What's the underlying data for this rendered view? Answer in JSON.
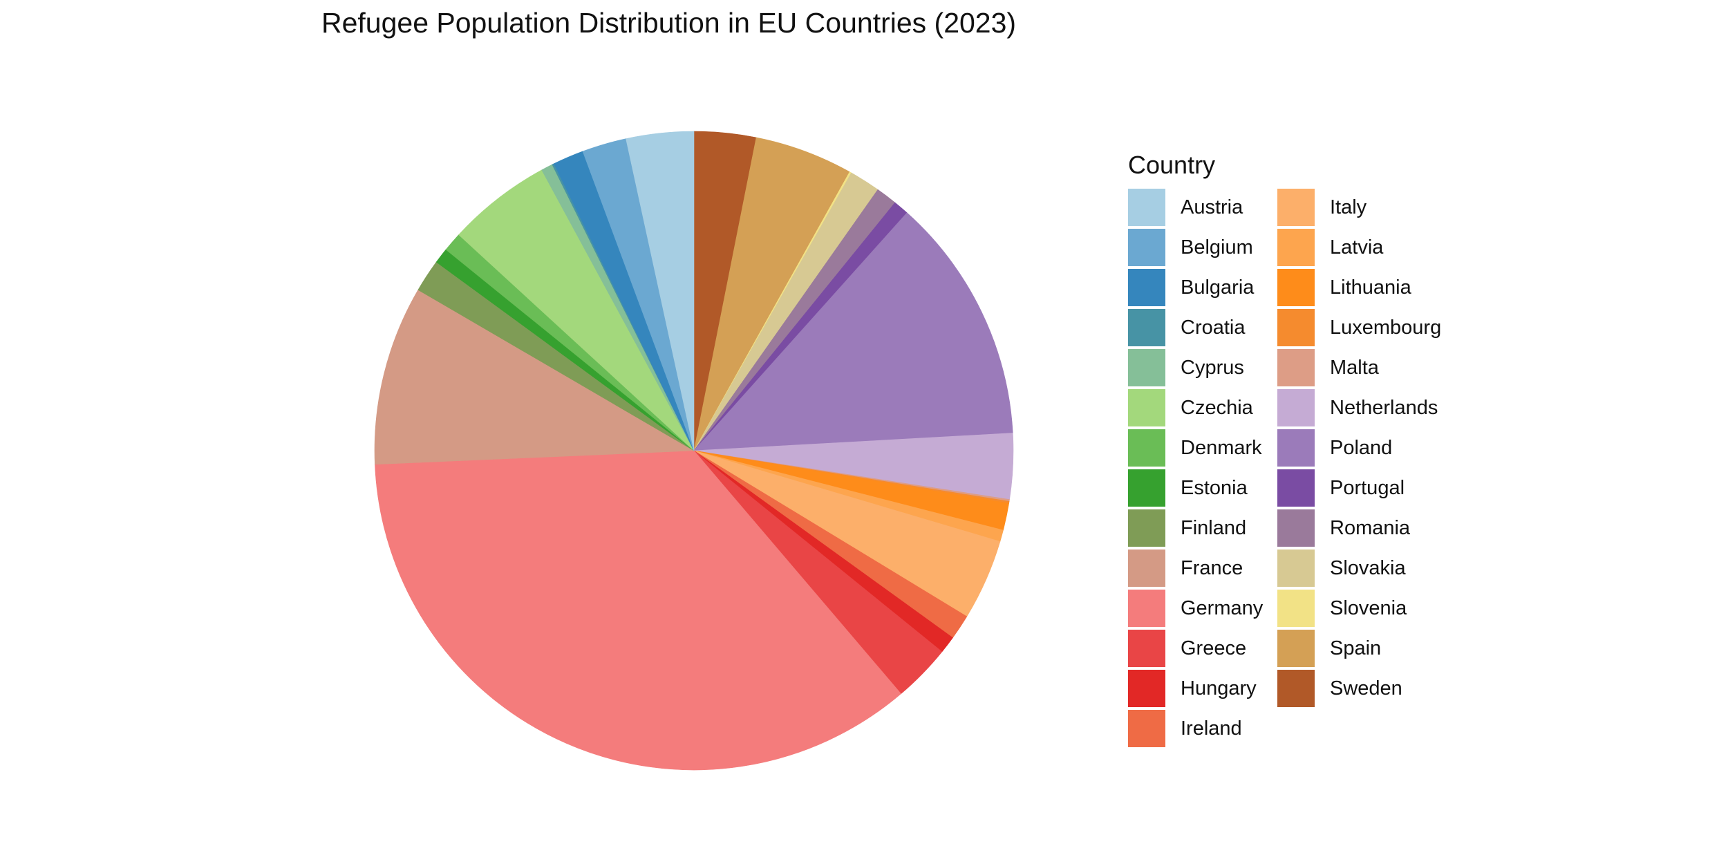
{
  "chart_data": {
    "type": "pie",
    "title": "Refugee Population Distribution in EU Countries (2023)",
    "legend_title": "Country",
    "legend_position": "right",
    "start": "top",
    "direction": "clockwise",
    "slice_order": [
      "Sweden",
      "Spain",
      "Slovenia",
      "Slovakia",
      "Romania",
      "Portugal",
      "Poland",
      "Netherlands",
      "Malta",
      "Luxembourg",
      "Lithuania",
      "Latvia",
      "Italy",
      "Ireland",
      "Hungary",
      "Greece",
      "Germany",
      "France",
      "Finland",
      "Estonia",
      "Denmark",
      "Czechia",
      "Cyprus",
      "Croatia",
      "Bulgaria",
      "Belgium",
      "Austria"
    ],
    "slices": [
      {
        "label": "Austria",
        "value": 3.5,
        "color": "#A6CEE3"
      },
      {
        "label": "Belgium",
        "value": 2.3,
        "color": "#6BA8D1"
      },
      {
        "label": "Bulgaria",
        "value": 1.6,
        "color": "#3586BD"
      },
      {
        "label": "Croatia",
        "value": 0.1,
        "color": "#4793A5"
      },
      {
        "label": "Cyprus",
        "value": 0.6,
        "color": "#85BF98"
      },
      {
        "label": "Czechia",
        "value": 5.4,
        "color": "#A3D87C"
      },
      {
        "label": "Denmark",
        "value": 1.0,
        "color": "#6ABD56"
      },
      {
        "label": "Estonia",
        "value": 0.8,
        "color": "#36A12F"
      },
      {
        "label": "Finland",
        "value": 1.7,
        "color": "#7F9C56"
      },
      {
        "label": "France",
        "value": 9.3,
        "color": "#D49A85"
      },
      {
        "label": "Germany",
        "value": 36.4,
        "color": "#F47C7C"
      },
      {
        "label": "Greece",
        "value": 3.0,
        "color": "#E94546"
      },
      {
        "label": "Hungary",
        "value": 0.9,
        "color": "#E22826"
      },
      {
        "label": "Ireland",
        "value": 1.3,
        "color": "#EF6B45"
      },
      {
        "label": "Italy",
        "value": 4.2,
        "color": "#FCAF6A"
      },
      {
        "label": "Latvia",
        "value": 0.6,
        "color": "#FDA54E"
      },
      {
        "label": "Lithuania",
        "value": 1.4,
        "color": "#FE8C1A"
      },
      {
        "label": "Luxembourg",
        "value": 0.1,
        "color": "#F58B2E"
      },
      {
        "label": "Malta",
        "value": 0.1,
        "color": "#DD9D86"
      },
      {
        "label": "Netherlands",
        "value": 3.4,
        "color": "#C5ABD4"
      },
      {
        "label": "Poland",
        "value": 12.8,
        "color": "#9B7BBA"
      },
      {
        "label": "Portugal",
        "value": 0.8,
        "color": "#7A4CA3"
      },
      {
        "label": "Romania",
        "value": 1.1,
        "color": "#9A7A9B"
      },
      {
        "label": "Slovakia",
        "value": 1.6,
        "color": "#D7C993"
      },
      {
        "label": "Slovenia",
        "value": 0.1,
        "color": "#F2E286"
      },
      {
        "label": "Spain",
        "value": 5.1,
        "color": "#D4A055"
      },
      {
        "label": "Sweden",
        "value": 3.2,
        "color": "#B15928"
      }
    ]
  }
}
